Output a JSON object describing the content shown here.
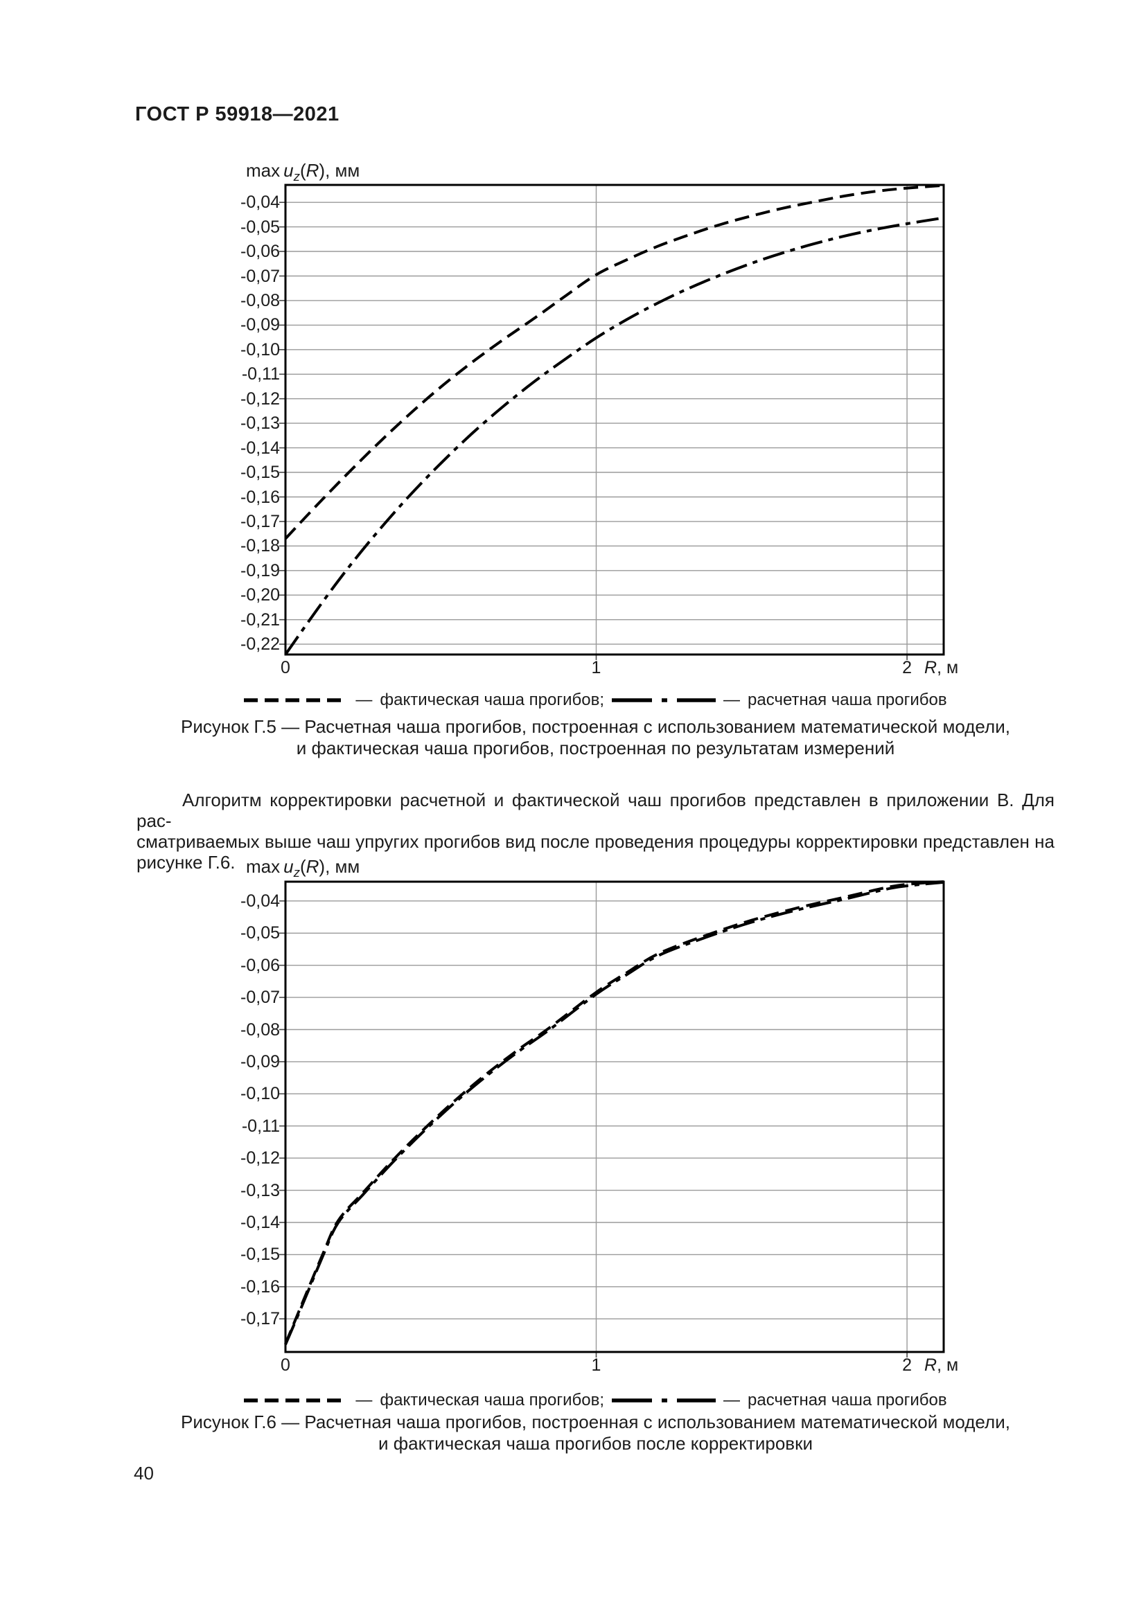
{
  "page": {
    "header_title": "ГОСТ Р 59918—2021",
    "page_number": "40"
  },
  "axis_label": {
    "prefix": "max",
    "var_u": "u",
    "sub_z": "z",
    "open": "(",
    "var_r": "R",
    "close": "), мм"
  },
  "x_axis_label": {
    "var_r": "R",
    "unit": ", м"
  },
  "legend": {
    "item1_sep": "—",
    "item1_label": "фактическая чаша прогибов;",
    "item2_sep": "—",
    "item2_label": "расчетная чаша прогибов"
  },
  "figures": [
    {
      "caption_line1": "Рисунок Г.5 — Расчетная чаша прогибов, построенная с использованием математической модели,",
      "caption_line2": "и фактическая чаша прогибов, построенная по результатам измерений"
    },
    {
      "caption_line1": "Рисунок Г.6 — Расчетная чаша прогибов, построенная с использованием математической модели,",
      "caption_line2": "и фактическая чаша прогибов после корректировки"
    }
  ],
  "paragraph": {
    "lines": [
      "Алгоритм корректировки расчетной и фактической чаш прогибов представлен в приложении В. Для рас-",
      "сматриваемых выше чаш упругих прогибов вид после проведения процедуры корректировки представлен на",
      "рисунке Г.6."
    ]
  },
  "chart_data": [
    {
      "type": "line",
      "figure": "Г.5",
      "title": "max uz(R), мм",
      "xlabel": "R, м",
      "ylabel": "max uz(R), мм",
      "grid": true,
      "legend_position": "below",
      "xlim": [
        0,
        2.118
      ],
      "ylim": [
        -0.2242,
        -0.0329
      ],
      "x_ticks": [
        0,
        1,
        2
      ],
      "y_ticks": [
        -0.04,
        -0.05,
        -0.06,
        -0.07,
        -0.08,
        -0.09,
        -0.1,
        -0.11,
        -0.12,
        -0.13,
        -0.14,
        -0.15,
        -0.16,
        -0.17,
        -0.18,
        -0.19,
        -0.2,
        -0.21,
        -0.22
      ],
      "series": [
        {
          "name": "фактическая чаша прогибов",
          "line_style": "dashed",
          "x": [
            0,
            0.1,
            0.2,
            0.3,
            0.4,
            0.5,
            0.6,
            0.7,
            0.8,
            0.9,
            1.0,
            1.1,
            1.2,
            1.3,
            1.4,
            1.5,
            1.6,
            1.7,
            1.8,
            1.9,
            2.0,
            2.118
          ],
          "y": [
            -0.177,
            -0.1635,
            -0.1505,
            -0.138,
            -0.1262,
            -0.1152,
            -0.1052,
            -0.096,
            -0.0873,
            -0.0782,
            -0.0695,
            -0.0633,
            -0.0578,
            -0.0532,
            -0.049,
            -0.0455,
            -0.0424,
            -0.0398,
            -0.0374,
            -0.0355,
            -0.0342,
            -0.0331
          ]
        },
        {
          "name": "расчетная чаша прогибов",
          "line_style": "dashdot",
          "x": [
            0,
            0.1,
            0.2,
            0.3,
            0.4,
            0.5,
            0.6,
            0.7,
            0.8,
            0.9,
            1.0,
            1.1,
            1.2,
            1.3,
            1.4,
            1.5,
            1.6,
            1.7,
            1.8,
            1.9,
            2.0,
            2.118
          ],
          "y": [
            -0.2242,
            -0.2062,
            -0.1892,
            -0.1737,
            -0.1594,
            -0.1463,
            -0.1342,
            -0.1232,
            -0.1131,
            -0.1039,
            -0.0952,
            -0.0876,
            -0.0809,
            -0.0749,
            -0.0696,
            -0.0648,
            -0.0606,
            -0.0569,
            -0.0537,
            -0.051,
            -0.0487,
            -0.0463
          ]
        }
      ]
    },
    {
      "type": "line",
      "figure": "Г.6",
      "title": "max uz(R), мм",
      "xlabel": "R, м",
      "ylabel": "max uz(R), мм",
      "grid": true,
      "legend_position": "below",
      "xlim": [
        0,
        2.118
      ],
      "ylim": [
        -0.1803,
        -0.034
      ],
      "x_ticks": [
        0,
        1,
        2
      ],
      "y_ticks": [
        -0.04,
        -0.05,
        -0.06,
        -0.07,
        -0.08,
        -0.09,
        -0.1,
        -0.11,
        -0.12,
        -0.13,
        -0.14,
        -0.15,
        -0.16,
        -0.17
      ],
      "series": [
        {
          "name": "фактическая чаша прогибов",
          "line_style": "dashed",
          "x": [
            0,
            0.05,
            0.12,
            0.17,
            0.25,
            0.35,
            0.45,
            0.55,
            0.65,
            0.75,
            0.85,
            1.0,
            1.1,
            1.2,
            1.35,
            1.5,
            1.65,
            1.8,
            1.95,
            2.05,
            2.118
          ],
          "y": [
            -0.1778,
            -0.1661,
            -0.1499,
            -0.1394,
            -0.1307,
            -0.1202,
            -0.1106,
            -0.1017,
            -0.0936,
            -0.0862,
            -0.0794,
            -0.0684,
            -0.0622,
            -0.0564,
            -0.0508,
            -0.046,
            -0.0421,
            -0.0388,
            -0.0355,
            -0.0344,
            -0.034
          ]
        },
        {
          "name": "расчетная чаша прогибов",
          "line_style": "dashdot",
          "x": [
            0,
            0.05,
            0.12,
            0.17,
            0.25,
            0.35,
            0.45,
            0.55,
            0.65,
            0.75,
            0.85,
            1.0,
            1.1,
            1.2,
            1.35,
            1.5,
            1.65,
            1.8,
            1.95,
            2.05,
            2.118
          ],
          "y": [
            -0.178,
            -0.1667,
            -0.1505,
            -0.14,
            -0.1313,
            -0.1208,
            -0.1112,
            -0.1023,
            -0.0942,
            -0.0868,
            -0.08,
            -0.069,
            -0.0628,
            -0.057,
            -0.0514,
            -0.0466,
            -0.0427,
            -0.0394,
            -0.036,
            -0.0348,
            -0.0342
          ]
        }
      ]
    }
  ]
}
